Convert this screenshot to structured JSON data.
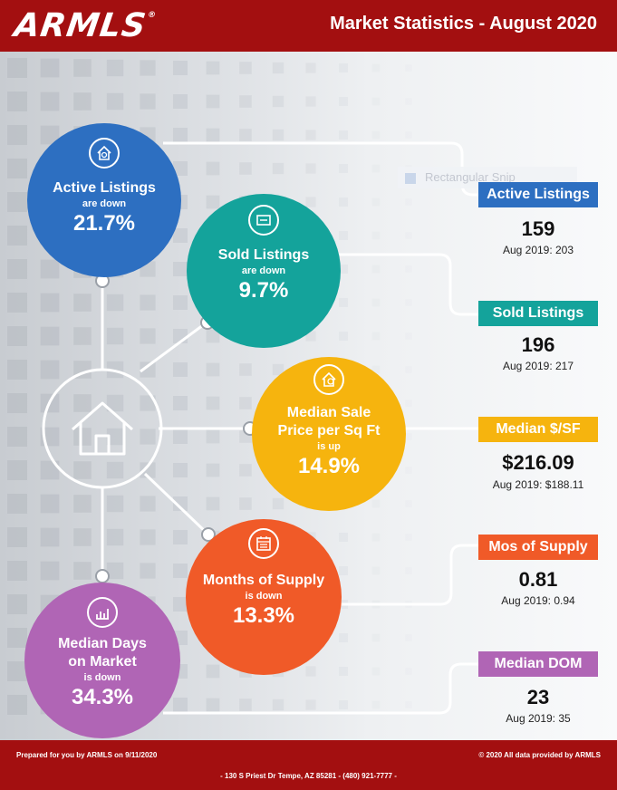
{
  "header": {
    "logo": "ARMLS",
    "logo_mark": "®",
    "title": "Market Statistics - August 2020"
  },
  "overlay": {
    "snip_label": "Rectangular Snip"
  },
  "metrics": {
    "active": {
      "title": "Active Listings",
      "direction": "are down",
      "pct": "21.7%",
      "label": "Active Listings",
      "value": "159",
      "prev": "Aug 2019: 203",
      "color": "#2d6fc1"
    },
    "sold": {
      "title": "Sold Listings",
      "direction": "are down",
      "pct": "9.7%",
      "label": "Sold Listings",
      "value": "196",
      "prev": "Aug 2019: 217",
      "color": "#14a39b"
    },
    "price": {
      "title_line1": "Median Sale",
      "title_line2": "Price per Sq Ft",
      "direction": "is up",
      "pct": "14.9%",
      "label": "Median $/SF",
      "value": "$216.09",
      "prev": "Aug 2019: $188.11",
      "color": "#f6b40e"
    },
    "supply": {
      "title": "Months of Supply",
      "direction": "is down",
      "pct": "13.3%",
      "label": "Mos of Supply",
      "value": "0.81",
      "prev": "Aug 2019: 0.94",
      "color": "#f05a28"
    },
    "dom": {
      "title_line1": "Median Days",
      "title_line2": "on Market",
      "direction": "is down",
      "pct": "34.3%",
      "label": "Median DOM",
      "value": "23",
      "prev": "Aug 2019: 35",
      "color": "#b065b5"
    }
  },
  "footer": {
    "prepared": "Prepared for you by ARMLS on 9/11/2020",
    "copyright": "© 2020 All data provided by ARMLS",
    "address": "- 130 S Priest Dr   Tempe, AZ 85281 - (480) 921-7777 -"
  }
}
